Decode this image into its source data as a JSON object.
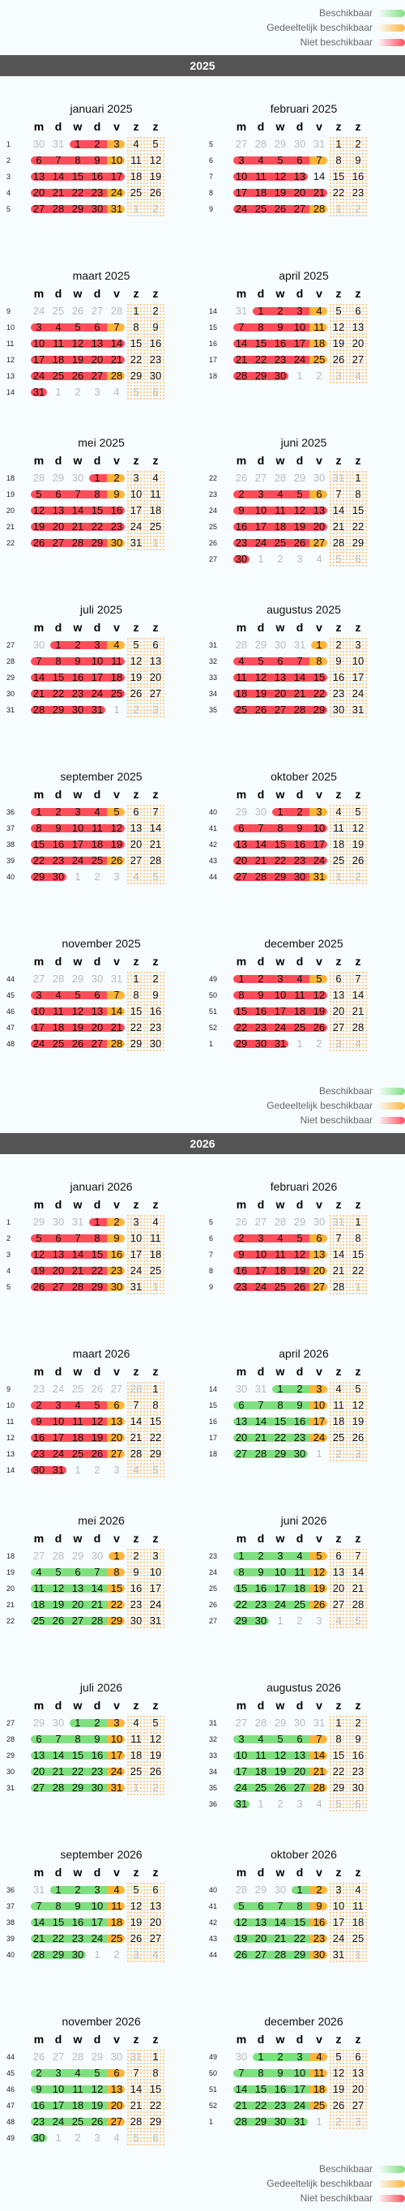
{
  "legend": {
    "available": "Beschikbaar",
    "partial": "Gedeeltelijk beschikbaar",
    "unavailable": "Niet beschikbaar"
  },
  "colors": {
    "available": "#7fe07f",
    "partial": "#ffb43a",
    "unavailable": "#ff4d5a",
    "yearbar": "#545454"
  },
  "weekday_headers": [
    "m",
    "d",
    "w",
    "d",
    "v",
    "z",
    "z"
  ],
  "years": [
    {
      "year": "2025",
      "months": [
        {
          "title": "januari 2025",
          "start": 2,
          "days": 31,
          "prev": 31,
          "first_week": 1,
          "r": [
            1,
            2,
            6,
            7,
            8,
            9,
            13,
            14,
            15,
            16,
            17,
            20,
            21,
            22,
            23,
            27,
            28,
            29,
            30
          ],
          "y": [
            3,
            10,
            24,
            31
          ],
          "g": []
        },
        {
          "title": "februari 2025",
          "start": 5,
          "days": 28,
          "prev": 31,
          "first_week": 5,
          "r": [
            3,
            4,
            5,
            6,
            10,
            11,
            12,
            13,
            17,
            18,
            19,
            20,
            21,
            24,
            25,
            26,
            27
          ],
          "y": [
            7,
            28
          ],
          "g": []
        },
        {
          "title": "maart 2025",
          "start": 5,
          "days": 31,
          "prev": 28,
          "first_week": 9,
          "r": [
            3,
            4,
            5,
            6,
            10,
            11,
            12,
            13,
            14,
            17,
            18,
            19,
            20,
            21,
            24,
            25,
            26,
            27,
            31
          ],
          "y": [
            7,
            28
          ],
          "g": []
        },
        {
          "title": "april 2025",
          "start": 1,
          "days": 30,
          "prev": 31,
          "first_week": 14,
          "r": [
            1,
            2,
            3,
            7,
            8,
            9,
            10,
            14,
            15,
            16,
            17,
            21,
            22,
            23,
            24,
            28,
            29,
            30
          ],
          "y": [
            4,
            11,
            18,
            25
          ],
          "g": []
        },
        {
          "title": "mei 2025",
          "start": 3,
          "days": 31,
          "prev": 30,
          "first_week": 18,
          "r": [
            1,
            5,
            6,
            7,
            8,
            12,
            13,
            14,
            15,
            16,
            19,
            20,
            21,
            22,
            23,
            26,
            27,
            28,
            29
          ],
          "y": [
            2,
            9,
            30
          ],
          "g": []
        },
        {
          "title": "juni 2025",
          "start": 6,
          "days": 30,
          "prev": 31,
          "first_week": 22,
          "r": [
            2,
            3,
            4,
            5,
            9,
            10,
            11,
            12,
            13,
            16,
            17,
            18,
            19,
            20,
            23,
            24,
            25,
            26,
            30
          ],
          "y": [
            6,
            27
          ],
          "g": []
        },
        {
          "title": "juli 2025",
          "start": 1,
          "days": 31,
          "prev": 30,
          "first_week": 27,
          "r": [
            1,
            2,
            3,
            7,
            8,
            9,
            10,
            11,
            14,
            15,
            16,
            17,
            18,
            21,
            22,
            23,
            24,
            25,
            28,
            29,
            30,
            31
          ],
          "y": [
            4
          ],
          "g": []
        },
        {
          "title": "augustus 2025",
          "start": 4,
          "days": 31,
          "prev": 31,
          "first_week": 31,
          "r": [
            4,
            5,
            6,
            7,
            11,
            12,
            13,
            14,
            15,
            18,
            19,
            20,
            21,
            22,
            25,
            26,
            27,
            28,
            29
          ],
          "y": [
            1,
            8
          ],
          "g": []
        },
        {
          "title": "september 2025",
          "start": 0,
          "days": 30,
          "prev": 31,
          "first_week": 36,
          "r": [
            1,
            2,
            3,
            4,
            8,
            9,
            10,
            11,
            12,
            15,
            16,
            17,
            18,
            19,
            22,
            23,
            24,
            25,
            29,
            30
          ],
          "y": [
            5,
            26
          ],
          "g": []
        },
        {
          "title": "oktober 2025",
          "start": 2,
          "days": 31,
          "prev": 30,
          "first_week": 40,
          "r": [
            1,
            2,
            6,
            7,
            8,
            9,
            10,
            13,
            14,
            15,
            16,
            17,
            20,
            21,
            22,
            23,
            24,
            27,
            28,
            29,
            30
          ],
          "y": [
            3,
            31
          ],
          "g": []
        },
        {
          "title": "november 2025",
          "start": 5,
          "days": 30,
          "prev": 31,
          "first_week": 44,
          "r": [
            3,
            4,
            5,
            6,
            10,
            11,
            12,
            13,
            17,
            18,
            19,
            20,
            21,
            24,
            25,
            26,
            27
          ],
          "y": [
            7,
            14,
            28
          ],
          "g": []
        },
        {
          "title": "december 2025",
          "start": 0,
          "days": 31,
          "prev": 30,
          "first_week": 49,
          "r": [
            1,
            2,
            3,
            4,
            8,
            9,
            10,
            11,
            12,
            15,
            16,
            17,
            18,
            19,
            22,
            23,
            24,
            25,
            26,
            29,
            30,
            31
          ],
          "y": [
            5
          ],
          "g": []
        }
      ]
    },
    {
      "year": "2026",
      "months": [
        {
          "title": "januari 2026",
          "start": 3,
          "days": 31,
          "prev": 31,
          "first_week": 1,
          "r": [
            1,
            5,
            6,
            7,
            8,
            12,
            13,
            14,
            15,
            19,
            20,
            21,
            22,
            26,
            27,
            28,
            29
          ],
          "y": [
            2,
            9,
            16,
            23,
            30
          ],
          "g": []
        },
        {
          "title": "februari 2026",
          "start": 6,
          "days": 28,
          "prev": 31,
          "first_week": 5,
          "r": [
            2,
            3,
            4,
            5,
            9,
            10,
            11,
            12,
            16,
            17,
            18,
            19,
            23,
            24,
            25,
            26
          ],
          "y": [
            6,
            13,
            20,
            27
          ],
          "g": []
        },
        {
          "title": "maart 2026",
          "start": 6,
          "days": 31,
          "prev": 28,
          "first_week": 9,
          "r": [
            2,
            3,
            4,
            5,
            9,
            10,
            11,
            12,
            16,
            17,
            18,
            19,
            23,
            24,
            25,
            26,
            30,
            31
          ],
          "y": [
            6,
            13,
            20,
            27
          ],
          "g": []
        },
        {
          "title": "april 2026",
          "start": 2,
          "days": 30,
          "prev": 31,
          "first_week": 14,
          "r": [],
          "y": [
            3,
            10,
            17,
            24
          ],
          "g": [
            1,
            2,
            6,
            7,
            8,
            9,
            13,
            14,
            15,
            16,
            20,
            21,
            22,
            23,
            27,
            28,
            29,
            30
          ]
        },
        {
          "title": "mei 2026",
          "start": 4,
          "days": 31,
          "prev": 30,
          "first_week": 18,
          "r": [],
          "y": [
            1,
            8,
            15,
            22,
            29
          ],
          "g": [
            4,
            5,
            6,
            7,
            11,
            12,
            13,
            14,
            18,
            19,
            20,
            21,
            25,
            26,
            27,
            28
          ]
        },
        {
          "title": "juni 2026",
          "start": 0,
          "days": 30,
          "prev": 31,
          "first_week": 23,
          "r": [],
          "y": [
            5,
            12,
            19,
            26
          ],
          "g": [
            1,
            2,
            3,
            4,
            8,
            9,
            10,
            11,
            15,
            16,
            17,
            18,
            22,
            23,
            24,
            25,
            29,
            30
          ]
        },
        {
          "title": "juli 2026",
          "start": 2,
          "days": 31,
          "prev": 30,
          "first_week": 27,
          "r": [],
          "y": [
            3,
            10,
            17,
            24,
            31
          ],
          "g": [
            1,
            2,
            6,
            7,
            8,
            9,
            13,
            14,
            15,
            16,
            20,
            21,
            22,
            23,
            27,
            28,
            29,
            30
          ]
        },
        {
          "title": "augustus 2026",
          "start": 5,
          "days": 31,
          "prev": 31,
          "first_week": 31,
          "r": [],
          "y": [
            7,
            14,
            21,
            28
          ],
          "g": [
            3,
            4,
            5,
            6,
            10,
            11,
            12,
            13,
            17,
            18,
            19,
            20,
            24,
            25,
            26,
            27,
            31
          ]
        },
        {
          "title": "september 2026",
          "start": 1,
          "days": 30,
          "prev": 31,
          "first_week": 36,
          "r": [],
          "y": [
            4,
            11,
            18,
            25
          ],
          "g": [
            1,
            2,
            3,
            7,
            8,
            9,
            10,
            14,
            15,
            16,
            17,
            21,
            22,
            23,
            24,
            28,
            29,
            30
          ]
        },
        {
          "title": "oktober 2026",
          "start": 3,
          "days": 31,
          "prev": 30,
          "first_week": 40,
          "r": [],
          "y": [
            2,
            9,
            16,
            23,
            30
          ],
          "g": [
            1,
            5,
            6,
            7,
            8,
            12,
            13,
            14,
            15,
            19,
            20,
            21,
            22,
            26,
            27,
            28,
            29
          ]
        },
        {
          "title": "november 2026",
          "start": 6,
          "days": 30,
          "prev": 31,
          "first_week": 44,
          "r": [],
          "y": [
            6,
            13,
            20,
            27
          ],
          "g": [
            2,
            3,
            4,
            5,
            9,
            10,
            11,
            12,
            16,
            17,
            18,
            19,
            23,
            24,
            25,
            26,
            30
          ]
        },
        {
          "title": "december 2026",
          "start": 1,
          "days": 31,
          "prev": 30,
          "first_week": 49,
          "r": [],
          "y": [
            4,
            11,
            18,
            25
          ],
          "g": [
            1,
            2,
            3,
            7,
            8,
            9,
            10,
            14,
            15,
            16,
            17,
            21,
            22,
            23,
            24,
            28,
            29,
            30,
            31
          ]
        }
      ]
    }
  ]
}
